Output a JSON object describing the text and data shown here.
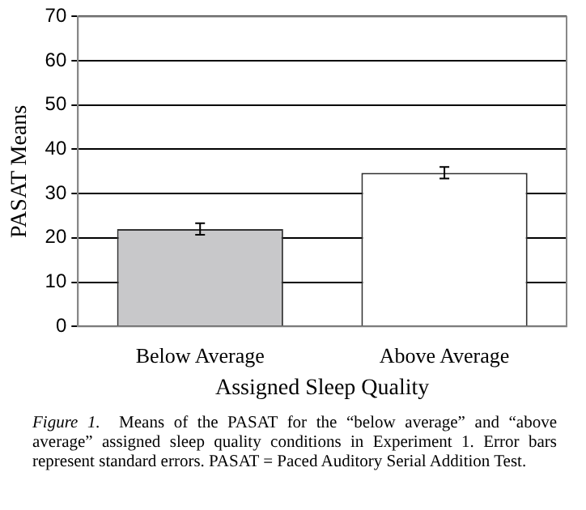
{
  "chart_data": {
    "type": "bar",
    "xlabel": "Assigned Sleep Quality",
    "ylabel": "PASAT Means",
    "categories": [
      "Below Average",
      "Above Average"
    ],
    "values": [
      22,
      34.7
    ],
    "errors": [
      1.3,
      1.3
    ],
    "colors": [
      "#c8c8ca",
      "#ffffff"
    ],
    "ylim": [
      0,
      70
    ],
    "yticks": [
      0,
      10,
      20,
      30,
      40,
      50,
      60,
      70
    ],
    "grid": "y",
    "annotations": [
      "Figure 1.",
      "Means of the PASAT for the “below average” and “above average” assigned sleep quality conditions in Experiment 1. Error bars represent standard errors. PASAT = Paced Auditory Serial Addition Test."
    ]
  }
}
